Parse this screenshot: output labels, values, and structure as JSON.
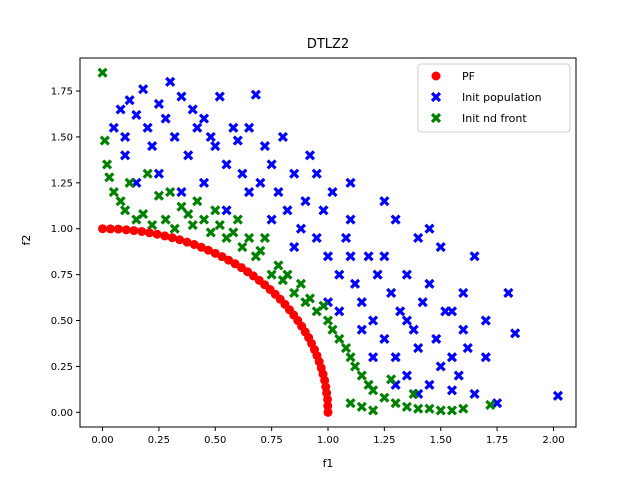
{
  "chart_data": {
    "type": "scatter",
    "title": "DTLZ2",
    "xlabel": "f1",
    "ylabel": "f2",
    "xlim": [
      -0.1,
      2.1
    ],
    "ylim": [
      -0.08,
      1.93
    ],
    "xticks": [
      "0.00",
      "0.25",
      "0.50",
      "0.75",
      "1.00",
      "1.25",
      "1.50",
      "1.75",
      "2.00"
    ],
    "yticks": [
      "0.00",
      "0.25",
      "0.50",
      "0.75",
      "1.00",
      "1.25",
      "1.50",
      "1.75"
    ],
    "grid": false,
    "legend_position": "top-right",
    "series": [
      {
        "name": "PF",
        "marker": "circle",
        "color": "#ff0000",
        "points": [
          [
            0.0,
            1.0
          ],
          [
            0.035,
            0.999
          ],
          [
            0.07,
            0.998
          ],
          [
            0.105,
            0.994
          ],
          [
            0.139,
            0.99
          ],
          [
            0.174,
            0.985
          ],
          [
            0.208,
            0.978
          ],
          [
            0.242,
            0.97
          ],
          [
            0.276,
            0.961
          ],
          [
            0.309,
            0.951
          ],
          [
            0.342,
            0.94
          ],
          [
            0.375,
            0.927
          ],
          [
            0.407,
            0.914
          ],
          [
            0.438,
            0.899
          ],
          [
            0.469,
            0.883
          ],
          [
            0.5,
            0.866
          ],
          [
            0.53,
            0.848
          ],
          [
            0.559,
            0.829
          ],
          [
            0.588,
            0.809
          ],
          [
            0.616,
            0.788
          ],
          [
            0.643,
            0.766
          ],
          [
            0.669,
            0.743
          ],
          [
            0.695,
            0.719
          ],
          [
            0.719,
            0.695
          ],
          [
            0.743,
            0.669
          ],
          [
            0.766,
            0.643
          ],
          [
            0.788,
            0.616
          ],
          [
            0.809,
            0.588
          ],
          [
            0.829,
            0.559
          ],
          [
            0.848,
            0.53
          ],
          [
            0.866,
            0.5
          ],
          [
            0.883,
            0.469
          ],
          [
            0.899,
            0.438
          ],
          [
            0.914,
            0.407
          ],
          [
            0.927,
            0.375
          ],
          [
            0.94,
            0.342
          ],
          [
            0.951,
            0.309
          ],
          [
            0.961,
            0.276
          ],
          [
            0.97,
            0.242
          ],
          [
            0.978,
            0.208
          ],
          [
            0.985,
            0.174
          ],
          [
            0.99,
            0.139
          ],
          [
            0.994,
            0.105
          ],
          [
            0.998,
            0.07
          ],
          [
            0.999,
            0.035
          ],
          [
            1.0,
            0.0
          ]
        ]
      },
      {
        "name": "Init population",
        "marker": "x",
        "color": "#0000ff",
        "points": [
          [
            0.05,
            1.55
          ],
          [
            0.08,
            1.65
          ],
          [
            0.1,
            1.5
          ],
          [
            0.12,
            1.7
          ],
          [
            0.15,
            1.62
          ],
          [
            0.18,
            1.76
          ],
          [
            0.2,
            1.55
          ],
          [
            0.22,
            1.45
          ],
          [
            0.25,
            1.68
          ],
          [
            0.28,
            1.6
          ],
          [
            0.3,
            1.8
          ],
          [
            0.32,
            1.5
          ],
          [
            0.35,
            1.72
          ],
          [
            0.38,
            1.4
          ],
          [
            0.4,
            1.65
          ],
          [
            0.42,
            1.55
          ],
          [
            0.45,
            1.6
          ],
          [
            0.48,
            1.5
          ],
          [
            0.5,
            1.45
          ],
          [
            0.52,
            1.72
          ],
          [
            0.55,
            1.35
          ],
          [
            0.58,
            1.55
          ],
          [
            0.6,
            1.48
          ],
          [
            0.62,
            1.3
          ],
          [
            0.65,
            1.55
          ],
          [
            0.68,
            1.73
          ],
          [
            0.7,
            1.25
          ],
          [
            0.72,
            1.45
          ],
          [
            0.75,
            1.35
          ],
          [
            0.78,
            1.2
          ],
          [
            0.8,
            1.5
          ],
          [
            0.82,
            1.1
          ],
          [
            0.85,
            1.3
          ],
          [
            0.88,
            1.0
          ],
          [
            0.9,
            1.15
          ],
          [
            0.92,
            1.4
          ],
          [
            0.95,
            0.95
          ],
          [
            0.98,
            1.1
          ],
          [
            1.0,
            0.85
          ],
          [
            1.02,
            1.2
          ],
          [
            1.05,
            0.75
          ],
          [
            1.08,
            0.95
          ],
          [
            1.1,
            1.05
          ],
          [
            1.12,
            0.7
          ],
          [
            1.15,
            0.6
          ],
          [
            1.18,
            0.85
          ],
          [
            1.2,
            0.5
          ],
          [
            1.22,
            0.75
          ],
          [
            1.25,
            0.4
          ],
          [
            1.28,
            0.65
          ],
          [
            1.3,
            0.3
          ],
          [
            1.32,
            0.55
          ],
          [
            1.35,
            0.2
          ],
          [
            1.38,
            0.45
          ],
          [
            1.4,
            0.35
          ],
          [
            1.42,
            0.6
          ],
          [
            1.45,
            0.15
          ],
          [
            1.48,
            0.4
          ],
          [
            1.5,
            0.25
          ],
          [
            1.52,
            0.55
          ],
          [
            1.55,
            0.3
          ],
          [
            1.58,
            0.2
          ],
          [
            1.6,
            0.45
          ],
          [
            1.62,
            0.35
          ],
          [
            1.65,
            0.1
          ],
          [
            1.7,
            0.5
          ],
          [
            1.75,
            0.05
          ],
          [
            1.8,
            0.65
          ],
          [
            1.83,
            0.43
          ],
          [
            2.02,
            0.09
          ],
          [
            1.65,
            0.85
          ],
          [
            1.5,
            0.9
          ],
          [
            1.3,
            1.05
          ],
          [
            1.4,
            0.95
          ],
          [
            1.25,
            1.15
          ],
          [
            1.45,
            1.0
          ],
          [
            1.1,
            1.25
          ],
          [
            1.35,
            0.75
          ],
          [
            0.25,
            1.3
          ],
          [
            0.45,
            1.25
          ],
          [
            0.55,
            1.1
          ],
          [
            0.75,
            1.05
          ],
          [
            0.95,
            1.3
          ],
          [
            0.15,
            1.25
          ],
          [
            0.1,
            1.4
          ],
          [
            0.35,
            1.2
          ],
          [
            0.65,
            1.2
          ],
          [
            0.85,
            0.9
          ],
          [
            1.0,
            0.6
          ],
          [
            1.15,
            0.45
          ],
          [
            1.25,
            0.85
          ],
          [
            1.35,
            0.5
          ],
          [
            1.45,
            0.7
          ],
          [
            1.55,
            0.55
          ],
          [
            1.6,
            0.65
          ],
          [
            1.7,
            0.3
          ],
          [
            1.2,
            0.3
          ],
          [
            1.3,
            0.15
          ],
          [
            1.4,
            0.1
          ],
          [
            1.55,
            0.12
          ],
          [
            1.05,
            0.55
          ],
          [
            1.1,
            0.85
          ]
        ]
      },
      {
        "name": "Init nd front",
        "marker": "x",
        "color": "#008000",
        "points": [
          [
            0.0,
            1.85
          ],
          [
            0.01,
            1.48
          ],
          [
            0.02,
            1.35
          ],
          [
            0.03,
            1.28
          ],
          [
            0.05,
            1.2
          ],
          [
            0.08,
            1.15
          ],
          [
            0.1,
            1.1
          ],
          [
            0.12,
            1.25
          ],
          [
            0.15,
            1.05
          ],
          [
            0.18,
            1.08
          ],
          [
            0.2,
            1.3
          ],
          [
            0.22,
            1.02
          ],
          [
            0.25,
            1.18
          ],
          [
            0.28,
            1.05
          ],
          [
            0.3,
            1.2
          ],
          [
            0.32,
            1.0
          ],
          [
            0.35,
            1.12
          ],
          [
            0.38,
            1.08
          ],
          [
            0.4,
            1.02
          ],
          [
            0.42,
            1.15
          ],
          [
            0.45,
            1.05
          ],
          [
            0.48,
            0.98
          ],
          [
            0.5,
            1.1
          ],
          [
            0.52,
            1.02
          ],
          [
            0.55,
            0.95
          ],
          [
            0.58,
            0.98
          ],
          [
            0.6,
            1.05
          ],
          [
            0.62,
            0.9
          ],
          [
            0.65,
            0.95
          ],
          [
            0.68,
            0.85
          ],
          [
            0.7,
            0.88
          ],
          [
            0.72,
            0.95
          ],
          [
            0.75,
            0.75
          ],
          [
            0.78,
            0.8
          ],
          [
            0.8,
            0.72
          ],
          [
            0.82,
            0.75
          ],
          [
            0.85,
            0.65
          ],
          [
            0.88,
            0.7
          ],
          [
            0.9,
            0.6
          ],
          [
            0.92,
            0.62
          ],
          [
            0.95,
            0.55
          ],
          [
            0.98,
            0.58
          ],
          [
            1.0,
            0.5
          ],
          [
            1.02,
            0.45
          ],
          [
            1.05,
            0.4
          ],
          [
            1.08,
            0.35
          ],
          [
            1.1,
            0.3
          ],
          [
            1.12,
            0.25
          ],
          [
            1.15,
            0.2
          ],
          [
            1.18,
            0.15
          ],
          [
            1.2,
            0.12
          ],
          [
            1.25,
            0.08
          ],
          [
            1.3,
            0.05
          ],
          [
            1.35,
            0.03
          ],
          [
            1.4,
            0.02
          ],
          [
            1.45,
            0.02
          ],
          [
            1.5,
            0.01
          ],
          [
            1.55,
            0.01
          ],
          [
            1.6,
            0.02
          ],
          [
            1.72,
            0.04
          ],
          [
            1.15,
            0.03
          ],
          [
            1.2,
            0.01
          ],
          [
            1.38,
            0.1
          ],
          [
            1.28,
            0.18
          ],
          [
            1.1,
            0.05
          ]
        ]
      }
    ]
  }
}
